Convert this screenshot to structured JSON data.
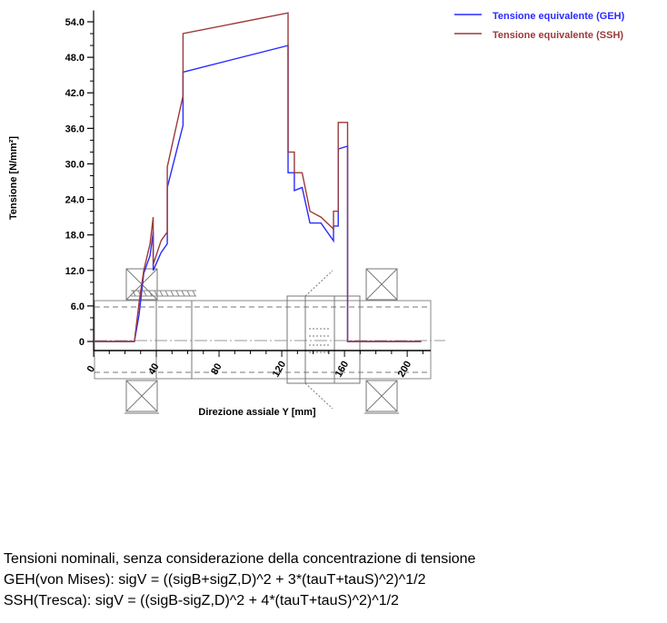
{
  "chart_data": {
    "type": "line",
    "title": "",
    "xlabel": "Direzione assiale Y [mm]",
    "ylabel": "Tensione [N/mm²]",
    "xlim": [
      0,
      215
    ],
    "ylim": [
      0,
      55
    ],
    "x_ticks": [
      0,
      40,
      80,
      120,
      160,
      200
    ],
    "x_tick_labels": [
      "0",
      "40",
      "80",
      "120",
      "160",
      "200"
    ],
    "y_ticks": [
      0,
      6,
      12,
      18,
      24,
      30,
      36,
      42,
      48,
      54
    ],
    "y_tick_labels": [
      "0",
      "6.0",
      "12.0",
      "18.0",
      "24.0",
      "30.0",
      "36.0",
      "42.0",
      "48.0",
      "54.0"
    ],
    "grid": false,
    "legend_position": "top-right",
    "series": [
      {
        "name": "Tensione equivalente (GEH)",
        "color": "#2a2aff",
        "points": [
          [
            0,
            0
          ],
          [
            26,
            0
          ],
          [
            29,
            4.5
          ],
          [
            32,
            11.5
          ],
          [
            36,
            14.5
          ],
          [
            38,
            18.5
          ],
          [
            38,
            12
          ],
          [
            43,
            15
          ],
          [
            47,
            16.5
          ],
          [
            47,
            26
          ],
          [
            57,
            36.5
          ],
          [
            57,
            45.5
          ],
          [
            124,
            50
          ],
          [
            124,
            28.5
          ],
          [
            128,
            28.5
          ],
          [
            128,
            25.5
          ],
          [
            133,
            26
          ],
          [
            138,
            20
          ],
          [
            145,
            20
          ],
          [
            153,
            17
          ],
          [
            153,
            19.5
          ],
          [
            156,
            19.5
          ],
          [
            156,
            32.5
          ],
          [
            162,
            33
          ],
          [
            162,
            0
          ],
          [
            209,
            0
          ]
        ]
      },
      {
        "name": "Tensione equivalente (SSH)",
        "color": "#9c3a3a",
        "points": [
          [
            0,
            0
          ],
          [
            26,
            0
          ],
          [
            29,
            6.5
          ],
          [
            32,
            12
          ],
          [
            36,
            16.5
          ],
          [
            38,
            21
          ],
          [
            38,
            13
          ],
          [
            43,
            17
          ],
          [
            47,
            18.5
          ],
          [
            47,
            29.5
          ],
          [
            57,
            41.5
          ],
          [
            57,
            52
          ],
          [
            124,
            55.5
          ],
          [
            124,
            32
          ],
          [
            128,
            32
          ],
          [
            128,
            28.5
          ],
          [
            133,
            28.5
          ],
          [
            138,
            22
          ],
          [
            145,
            21
          ],
          [
            153,
            19
          ],
          [
            153,
            22
          ],
          [
            156,
            22
          ],
          [
            156,
            37
          ],
          [
            162,
            37
          ],
          [
            162,
            0
          ],
          [
            209,
            0
          ]
        ]
      }
    ]
  },
  "notes": {
    "line1": "Tensioni nominali, senza considerazione della concentrazione di tensione",
    "line2": "GEH(von Mises): sigV = ((sigB+sigZ,D)^2 + 3*(tauT+tauS)^2)^1/2",
    "line3": "SSH(Tresca): sigV = ((sigB-sigZ,D)^2 + 4*(tauT+tauS)^2)^1/2"
  }
}
